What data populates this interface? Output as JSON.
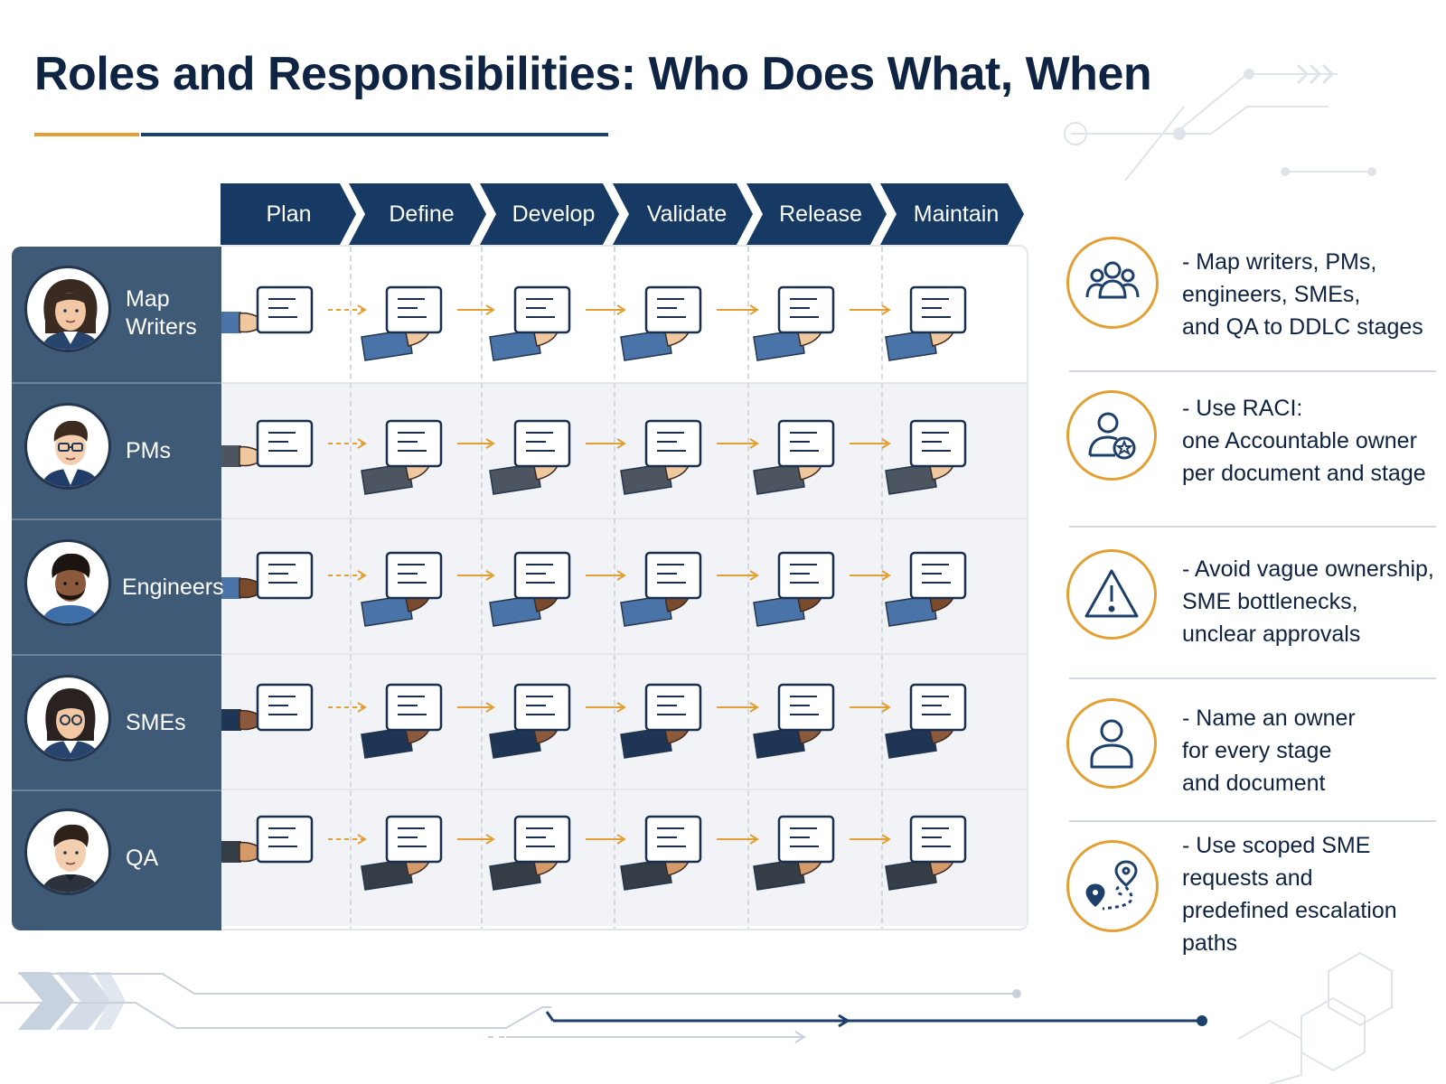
{
  "page": {
    "title": "Roles and Responsibilities: Who Does What, When"
  },
  "stages": [
    {
      "label": "Plan"
    },
    {
      "label": "Define"
    },
    {
      "label": "Develop"
    },
    {
      "label": "Validate"
    },
    {
      "label": "Release"
    },
    {
      "label": "Maintain"
    }
  ],
  "roles": [
    {
      "line1": "Map",
      "line2": "Writers",
      "avatar_icon": "writer-avatar-icon"
    },
    {
      "line1": "PMs",
      "line2": "",
      "avatar_icon": "pm-avatar-icon"
    },
    {
      "line1": "Engineers",
      "line2": "",
      "avatar_icon": "engineer-avatar-icon"
    },
    {
      "line1": "SMEs",
      "line2": "",
      "avatar_icon": "sme-avatar-icon"
    },
    {
      "line1": "QA",
      "line2": "",
      "avatar_icon": "qa-avatar-icon"
    }
  ],
  "guidance": [
    {
      "icon": "team-icon",
      "lines": [
        "- Map writers, PMs,",
        "engineers, SMEs,",
        "and QA to DDLC stages"
      ]
    },
    {
      "icon": "user-star-icon",
      "lines": [
        "- Use RACI:",
        "one Accountable owner",
        "per document and stage"
      ]
    },
    {
      "icon": "warning-icon",
      "lines": [
        "- Avoid vague ownership,",
        "SME bottlenecks,",
        "unclear approvals"
      ]
    },
    {
      "icon": "person-icon",
      "lines": [
        "- Name an owner",
        "for every stage",
        "and document"
      ]
    },
    {
      "icon": "route-pin-icon",
      "lines": [
        "- Use scoped SME",
        "requests and",
        "predefined escalation",
        "paths"
      ]
    }
  ],
  "colors": {
    "navy": "#163a63",
    "panel": "#3f5a76",
    "gold": "#e2a034",
    "text": "#0f2340"
  }
}
